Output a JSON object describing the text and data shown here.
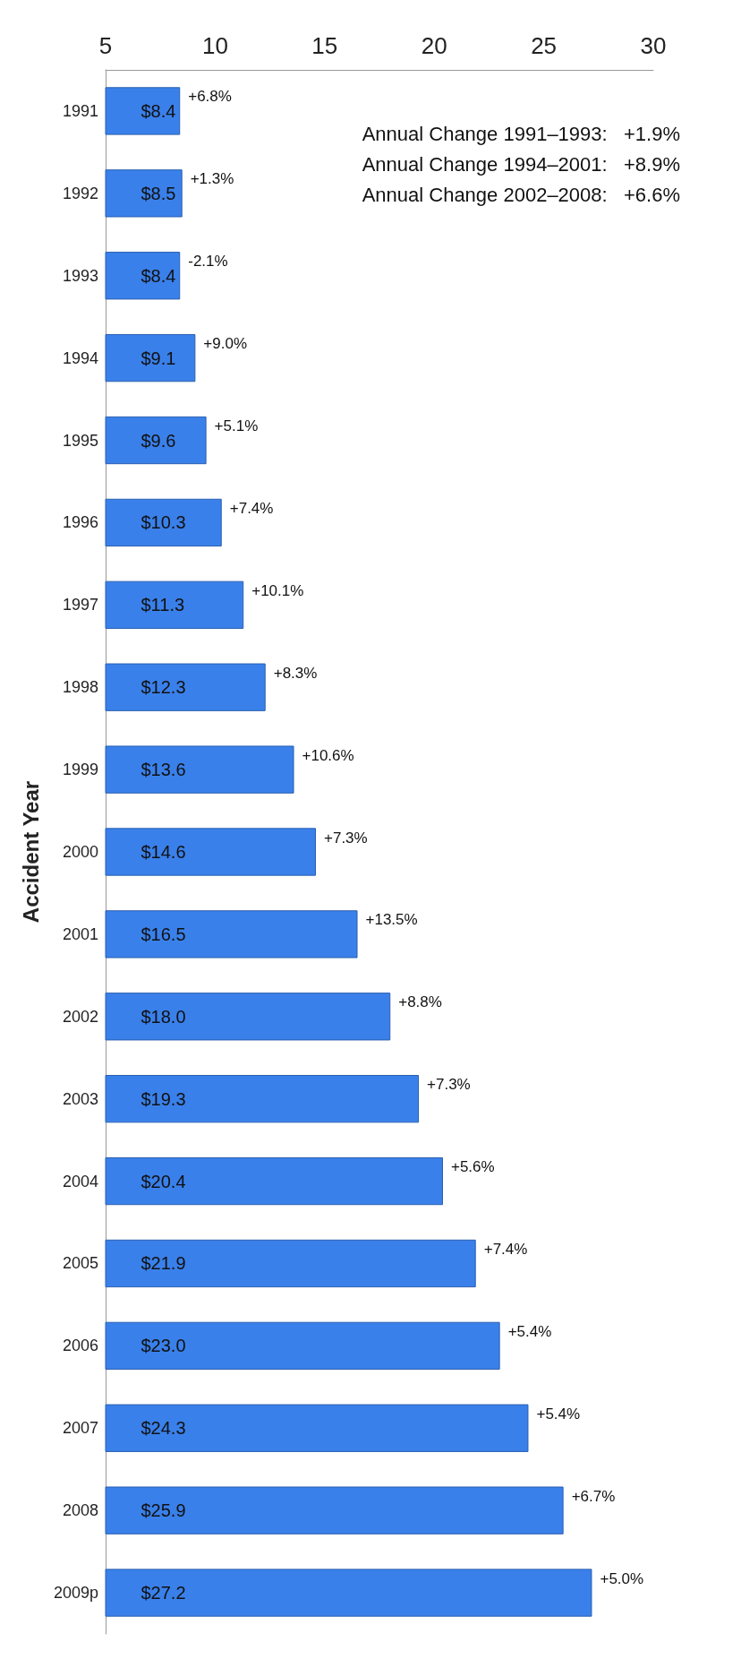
{
  "chart_data": {
    "type": "bar",
    "orientation": "horizontal",
    "ylabel": "Accident Year",
    "categories": [
      "1991",
      "1992",
      "1993",
      "1994",
      "1995",
      "1996",
      "1997",
      "1998",
      "1999",
      "2000",
      "2001",
      "2002",
      "2003",
      "2004",
      "2005",
      "2006",
      "2007",
      "2008",
      "2009p"
    ],
    "values": [
      8.4,
      8.5,
      8.4,
      9.1,
      9.6,
      10.3,
      11.3,
      12.3,
      13.6,
      14.6,
      16.5,
      18.0,
      19.3,
      20.4,
      21.9,
      23.0,
      24.3,
      25.9,
      27.2
    ],
    "value_labels": [
      "$8.4",
      "$8.5",
      "$8.4",
      "$9.1",
      "$9.6",
      "$10.3",
      "$11.3",
      "$12.3",
      "$13.6",
      "$14.6",
      "$16.5",
      "$18.0",
      "$19.3",
      "$20.4",
      "$21.9",
      "$23.0",
      "$24.3",
      "$25.9",
      "$27.2"
    ],
    "color": "#3a80ea",
    "xlim": [
      5,
      30
    ],
    "xticks": [
      5,
      10,
      15,
      20,
      25,
      30
    ],
    "grid": false,
    "annotations": [
      {
        "text": "+6.8%",
        "x": 8.4,
        "y": "1991"
      },
      {
        "text": "+1.3%",
        "x": 8.5,
        "y": "1992"
      },
      {
        "text": "-2.1%",
        "x": 8.4,
        "y": "1993"
      },
      {
        "text": "+9.0%",
        "x": 9.1,
        "y": "1994"
      },
      {
        "text": "+5.1%",
        "x": 9.6,
        "y": "1995"
      },
      {
        "text": "+7.4%",
        "x": 10.3,
        "y": "1996"
      },
      {
        "text": "+10.1%",
        "x": 11.3,
        "y": "1997"
      },
      {
        "text": "+8.3%",
        "x": 12.3,
        "y": "1998"
      },
      {
        "text": "+10.6%",
        "x": 13.6,
        "y": "1999"
      },
      {
        "text": "+7.3%",
        "x": 14.6,
        "y": "2000"
      },
      {
        "text": "+13.5%",
        "x": 16.5,
        "y": "2001"
      },
      {
        "text": "+8.8%",
        "x": 18.0,
        "y": "2002"
      },
      {
        "text": "+7.3%",
        "x": 19.3,
        "y": "2003"
      },
      {
        "text": "+5.6%",
        "x": 20.4,
        "y": "2004"
      },
      {
        "text": "+7.4%",
        "x": 21.9,
        "y": "2005"
      },
      {
        "text": "+5.4%",
        "x": 23.0,
        "y": "2006"
      },
      {
        "text": "+5.4%",
        "x": 24.3,
        "y": "2007"
      },
      {
        "text": "+6.7%",
        "x": 25.9,
        "y": "2008"
      },
      {
        "text": "+5.0%",
        "x": 27.2,
        "y": "2009p"
      },
      "Annual Change 1991–1993:   +1.9%",
      "Annual Change 1994–2001:   +8.9%",
      "Annual Change 2002–2008:   +6.6%"
    ]
  }
}
